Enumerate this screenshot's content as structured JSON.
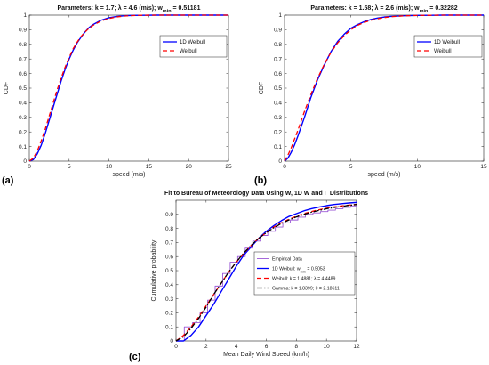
{
  "colors": {
    "blue": "#0000ff",
    "red": "#ff0000",
    "purple": "#9b59d6",
    "black": "#000000",
    "axis": "#222222"
  },
  "chart_data": [
    {
      "panel_label": "(a)",
      "type": "line",
      "title": "Parameters: k = 1.7; λ = 4.6 (m/s); w",
      "title_sub": "min",
      "title_tail": " = 0.51181",
      "xlabel": "speed (m/s)",
      "ylabel": "CDF",
      "xlim": [
        0,
        25
      ],
      "ylim": [
        0,
        1
      ],
      "xticks": [
        0,
        5,
        10,
        15,
        20,
        25
      ],
      "xtick_labels": [
        "0",
        "5",
        "10",
        "15",
        "20",
        "25"
      ],
      "yticks": [
        0,
        0.1,
        0.2,
        0.3,
        0.4,
        0.5,
        0.6,
        0.7,
        0.8,
        0.9,
        1
      ],
      "ytick_labels": [
        "0",
        "0.1",
        "0.2",
        "0.3",
        "0.4",
        "0.5",
        "0.6",
        "0.7",
        "0.8",
        "0.9",
        "1"
      ],
      "legend_position": "top-right",
      "series": [
        {
          "name": "1D Weibull",
          "style": "solid",
          "color": "#0000ff",
          "x": [
            0,
            0.5,
            1,
            1.5,
            2,
            2.5,
            3,
            3.5,
            4,
            4.5,
            5,
            5.5,
            6,
            6.5,
            7,
            7.5,
            8,
            9,
            10,
            11,
            12,
            13,
            14,
            16,
            18,
            20,
            25
          ],
          "y": [
            0,
            0.01,
            0.05,
            0.11,
            0.19,
            0.28,
            0.37,
            0.46,
            0.55,
            0.63,
            0.7,
            0.76,
            0.81,
            0.85,
            0.885,
            0.915,
            0.935,
            0.965,
            0.982,
            0.991,
            0.996,
            0.998,
            0.999,
            1,
            1,
            1,
            1
          ]
        },
        {
          "name": "Weibull",
          "style": "dashed",
          "color": "#ff0000",
          "x": [
            0,
            0.5,
            1,
            1.5,
            2,
            2.5,
            3,
            3.5,
            4,
            4.5,
            5,
            5.5,
            6,
            6.5,
            7,
            7.5,
            8,
            9,
            10,
            11,
            12,
            13,
            14,
            16,
            18,
            20,
            25
          ],
          "y": [
            0,
            0.02,
            0.07,
            0.14,
            0.22,
            0.31,
            0.4,
            0.49,
            0.57,
            0.645,
            0.71,
            0.77,
            0.815,
            0.855,
            0.885,
            0.91,
            0.93,
            0.96,
            0.977,
            0.988,
            0.994,
            0.997,
            0.999,
            1,
            1,
            1,
            1
          ]
        }
      ]
    },
    {
      "panel_label": "(b)",
      "type": "line",
      "title": "Parameters: k = 1.58; λ = 2.6 (m/s); w",
      "title_sub": "min",
      "title_tail": " = 0.32282",
      "xlabel": "speed (m/s)",
      "ylabel": "CDF",
      "xlim": [
        0,
        15
      ],
      "ylim": [
        0,
        1
      ],
      "xticks": [
        0,
        5,
        10,
        15
      ],
      "xtick_labels": [
        "0",
        "5",
        "10",
        "15"
      ],
      "yticks": [
        0,
        0.1,
        0.2,
        0.3,
        0.4,
        0.5,
        0.6,
        0.7,
        0.8,
        0.9,
        1
      ],
      "ytick_labels": [
        "0",
        "0.1",
        "0.2",
        "0.3",
        "0.4",
        "0.5",
        "0.6",
        "0.7",
        "0.8",
        "0.9",
        "1"
      ],
      "legend_position": "top-right",
      "series": [
        {
          "name": "1D Weibull",
          "style": "solid",
          "color": "#0000ff",
          "x": [
            0,
            0.25,
            0.5,
            0.75,
            1,
            1.5,
            2,
            2.5,
            3,
            3.5,
            4,
            4.5,
            5,
            5.5,
            6,
            6.5,
            7,
            7.5,
            8,
            9,
            10,
            11,
            12,
            13,
            15
          ],
          "y": [
            0,
            0.02,
            0.06,
            0.11,
            0.17,
            0.3,
            0.44,
            0.56,
            0.66,
            0.75,
            0.82,
            0.87,
            0.91,
            0.935,
            0.955,
            0.97,
            0.98,
            0.987,
            0.991,
            0.996,
            0.998,
            0.999,
            1,
            1,
            1
          ]
        },
        {
          "name": "Weibull",
          "style": "dashed",
          "color": "#ff0000",
          "x": [
            0,
            0.25,
            0.5,
            0.75,
            1,
            1.5,
            2,
            2.5,
            3,
            3.5,
            4,
            4.5,
            5,
            5.5,
            6,
            6.5,
            7,
            7.5,
            8,
            9,
            10,
            11,
            12,
            13,
            15
          ],
          "y": [
            0,
            0.04,
            0.09,
            0.15,
            0.21,
            0.34,
            0.46,
            0.57,
            0.665,
            0.745,
            0.81,
            0.86,
            0.9,
            0.93,
            0.95,
            0.965,
            0.975,
            0.983,
            0.989,
            0.995,
            0.998,
            0.999,
            1,
            1,
            1
          ]
        }
      ]
    },
    {
      "panel_label": "(c)",
      "type": "line",
      "title": "Fit to Bureau of Meteorology Data Using W, 1D W and Γ Distributions",
      "xlabel": "Mean Daily Wind Speed (km/h)",
      "ylabel": "Cumulative probability",
      "xlim": [
        0,
        12
      ],
      "ylim": [
        0,
        1
      ],
      "xticks": [
        0,
        2,
        4,
        6,
        8,
        10,
        12
      ],
      "xtick_labels": [
        "0",
        "2",
        "4",
        "6",
        "8",
        "10",
        "12"
      ],
      "yticks": [
        0,
        0.1,
        0.2,
        0.3,
        0.4,
        0.5,
        0.6,
        0.7,
        0.8,
        0.9
      ],
      "ytick_labels": [
        "0",
        "0.1",
        "0.2",
        "0.3",
        "0.4",
        "0.5",
        "0.6",
        "0.7",
        "0.8",
        "0.9"
      ],
      "legend_position": "center-right",
      "series": [
        {
          "name": "Empirical Data",
          "style": "stairs",
          "color": "#9b59d6",
          "x": [
            0,
            0.55,
            1.1,
            1.6,
            2.1,
            2.6,
            3.1,
            3.6,
            4.1,
            4.6,
            5.1,
            5.6,
            6.1,
            6.6,
            7.1,
            7.6,
            8.1,
            8.6,
            9.1,
            9.6,
            10.1,
            10.6,
            11.1,
            11.6,
            12
          ],
          "y": [
            0,
            0.1,
            0.13,
            0.2,
            0.29,
            0.39,
            0.48,
            0.56,
            0.6,
            0.66,
            0.71,
            0.75,
            0.78,
            0.81,
            0.84,
            0.86,
            0.88,
            0.9,
            0.91,
            0.92,
            0.93,
            0.94,
            0.95,
            0.96,
            0.97
          ]
        },
        {
          "name": "1D Weibull: w",
          "name_sub": "min",
          "name_tail": " = 0.5053",
          "style": "solid",
          "color": "#0000ff",
          "x": [
            0,
            0.5,
            1,
            1.5,
            2,
            2.5,
            3,
            3.5,
            4,
            4.5,
            5,
            5.5,
            6,
            6.5,
            7,
            7.5,
            8,
            8.5,
            9,
            9.5,
            10,
            10.5,
            11,
            11.5,
            12
          ],
          "y": [
            0,
            0,
            0.04,
            0.1,
            0.18,
            0.26,
            0.35,
            0.44,
            0.53,
            0.61,
            0.67,
            0.73,
            0.78,
            0.82,
            0.855,
            0.885,
            0.905,
            0.925,
            0.94,
            0.952,
            0.962,
            0.97,
            0.976,
            0.981,
            0.985
          ]
        },
        {
          "name": "Weibull: k = 1.4881; λ = 4.4489",
          "style": "dashed",
          "color": "#ff0000",
          "x": [
            0,
            0.5,
            1,
            1.5,
            2,
            2.5,
            3,
            3.5,
            4,
            4.5,
            5,
            5.5,
            6,
            6.5,
            7,
            7.5,
            8,
            8.5,
            9,
            9.5,
            10,
            10.5,
            11,
            11.5,
            12
          ],
          "y": [
            0,
            0.04,
            0.1,
            0.17,
            0.25,
            0.33,
            0.41,
            0.49,
            0.56,
            0.62,
            0.68,
            0.73,
            0.77,
            0.81,
            0.84,
            0.865,
            0.887,
            0.905,
            0.92,
            0.933,
            0.944,
            0.953,
            0.96,
            0.966,
            0.971
          ]
        },
        {
          "name": "Gamma: k = 1.8399; θ = 2.18611",
          "style": "dashdot",
          "color": "#000000",
          "x": [
            0,
            0.5,
            1,
            1.5,
            2,
            2.5,
            3,
            3.5,
            4,
            4.5,
            5,
            5.5,
            6,
            6.5,
            7,
            7.5,
            8,
            8.5,
            9,
            9.5,
            10,
            10.5,
            11,
            11.5,
            12
          ],
          "y": [
            0,
            0.03,
            0.09,
            0.16,
            0.24,
            0.33,
            0.41,
            0.49,
            0.56,
            0.625,
            0.68,
            0.73,
            0.77,
            0.805,
            0.835,
            0.86,
            0.882,
            0.9,
            0.915,
            0.928,
            0.94,
            0.949,
            0.957,
            0.964,
            0.97
          ]
        }
      ]
    }
  ]
}
